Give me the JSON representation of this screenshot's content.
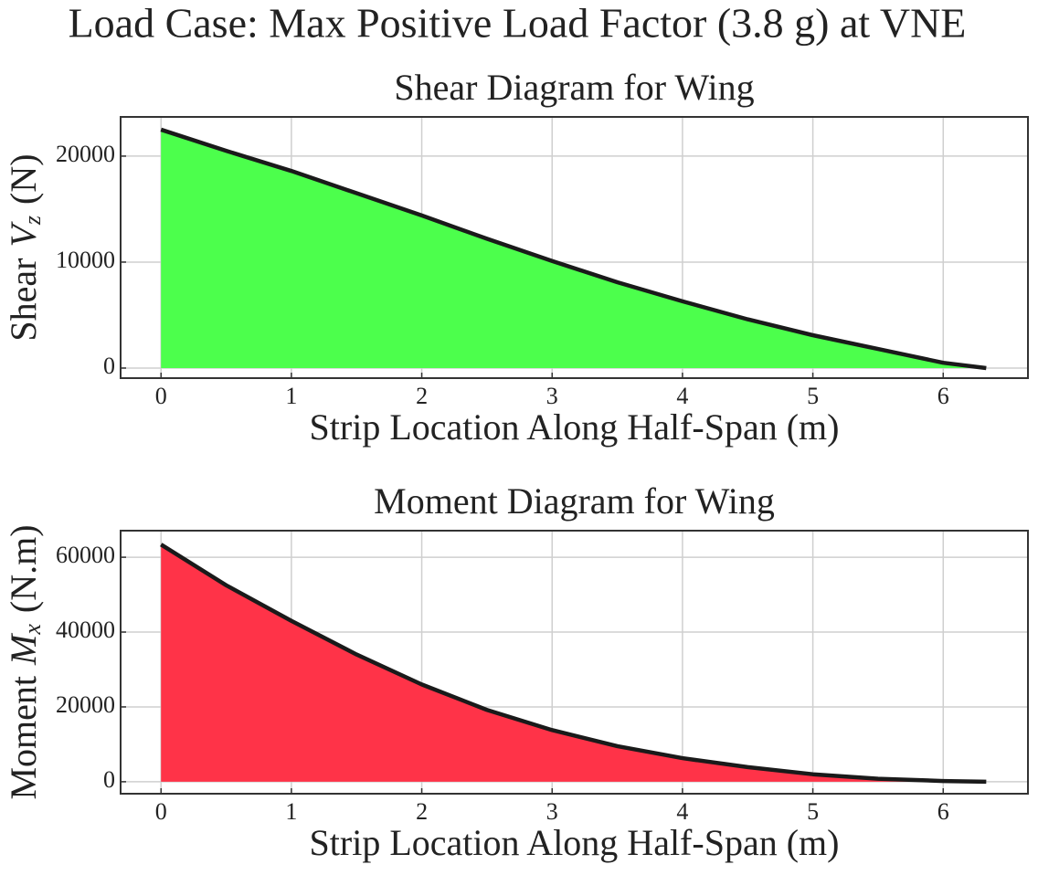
{
  "title": "Load Case: Max Positive Load Factor (3.8 g) at VNE",
  "chart_data": [
    {
      "type": "area",
      "title": "Shear Diagram for Wing",
      "xlabel": "Strip Location Along Half-Span (m)",
      "ylabel": {
        "prefix": "Shear",
        "symbol": "V",
        "subscript": "z",
        "suffix": "(N)"
      },
      "x": [
        0,
        0.5,
        1,
        1.5,
        2,
        2.5,
        3,
        3.5,
        4,
        4.5,
        5,
        5.5,
        6,
        6.33
      ],
      "values": [
        22500,
        20500,
        18600,
        16500,
        14400,
        12200,
        10100,
        8100,
        6300,
        4600,
        3100,
        1800,
        500,
        0
      ],
      "color": "#4cff4c",
      "line_color": "#1a1a1a",
      "xlim": [
        -0.31,
        6.65
      ],
      "ylim": [
        -950,
        23700
      ],
      "xticks": [
        0,
        1,
        2,
        3,
        4,
        5,
        6
      ],
      "yticks": [
        0,
        10000,
        20000
      ],
      "grid": true
    },
    {
      "type": "area",
      "title": "Moment Diagram for Wing",
      "xlabel": "Strip Location Along Half-Span (m)",
      "ylabel": {
        "prefix": "Moment",
        "symbol": "M",
        "subscript": "x",
        "suffix": "(N.m)"
      },
      "x": [
        0,
        0.5,
        1,
        1.5,
        2,
        2.5,
        3,
        3.5,
        4,
        4.5,
        5,
        5.5,
        6,
        6.33
      ],
      "values": [
        63400,
        52500,
        43000,
        34000,
        26000,
        19200,
        13800,
        9500,
        6300,
        3900,
        2000,
        800,
        200,
        0
      ],
      "color": "#ff3348",
      "line_color": "#1a1a1a",
      "xlim": [
        -0.31,
        6.65
      ],
      "ylim": [
        -3200,
        67100
      ],
      "xticks": [
        0,
        1,
        2,
        3,
        4,
        5,
        6
      ],
      "yticks": [
        0,
        20000,
        40000,
        60000
      ],
      "grid": true
    }
  ]
}
